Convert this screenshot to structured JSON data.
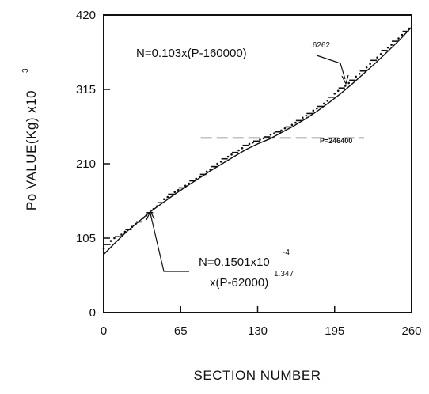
{
  "chart_data": {
    "type": "scatter",
    "xlabel": "SECTION NUMBER",
    "ylabel": "Po VALUE(Kg) x10",
    "ylabel_exponent": "3",
    "xlim": [
      0,
      260
    ],
    "ylim": [
      0,
      420
    ],
    "xticks": [
      "0",
      "65",
      "130",
      "195",
      "260"
    ],
    "yticks": [
      "0",
      "105",
      "210",
      "315",
      "420"
    ],
    "grid": false,
    "series": [
      {
        "kind": "points",
        "x": [
          0,
          3,
          6,
          9,
          12,
          15,
          18,
          21,
          24,
          27,
          30,
          33,
          36,
          39,
          42,
          45,
          48,
          51,
          54,
          57,
          60,
          63,
          66,
          69,
          72,
          75,
          78,
          81,
          84,
          87,
          90,
          93,
          96,
          99,
          102,
          105,
          108,
          111,
          114,
          117,
          120,
          123,
          126,
          129,
          132,
          135,
          138,
          141,
          144,
          147,
          150,
          153,
          156,
          159,
          162,
          165,
          168,
          171,
          174,
          177,
          180,
          183,
          186,
          189,
          192,
          195,
          198,
          201,
          204,
          207,
          210,
          213,
          216,
          219,
          222,
          225,
          228,
          231,
          234,
          237,
          240,
          243,
          246,
          249,
          252,
          255,
          258
        ],
        "y": [
          90,
          96,
          101,
          105,
          107,
          110,
          114,
          117,
          121,
          125,
          128,
          133,
          137,
          141,
          146,
          150,
          155,
          160,
          163,
          167,
          170,
          173,
          176,
          179,
          182,
          186,
          189,
          192,
          195,
          199,
          202,
          206,
          210,
          213,
          217,
          220,
          223,
          226,
          229,
          232,
          236,
          238,
          240,
          242,
          244,
          246,
          248,
          251,
          253,
          255,
          257,
          260,
          262,
          265,
          268,
          271,
          275,
          278,
          281,
          285,
          288,
          291,
          295,
          299,
          304,
          309,
          313,
          317,
          320,
          324,
          328,
          333,
          337,
          341,
          346,
          351,
          356,
          360,
          365,
          370,
          374,
          378,
          383,
          387,
          392,
          397,
          401
        ]
      },
      {
        "kind": "fit-curve",
        "x": [
          0,
          10,
          20,
          30,
          40,
          50,
          60,
          70,
          80,
          90,
          100,
          110,
          120,
          130,
          140,
          150,
          160,
          170,
          180,
          190,
          200,
          210,
          220,
          230,
          240,
          250,
          260
        ],
        "y": [
          82,
          99,
          115,
          129,
          143,
          155,
          167,
          178,
          189,
          200,
          210,
          220,
          230,
          238,
          245,
          254,
          263,
          273,
          284,
          296,
          309,
          323,
          338,
          353,
          369,
          385,
          403
        ]
      },
      {
        "kind": "dashed-line",
        "x": [
          82,
          220
        ],
        "y": [
          246.4,
          246.4
        ]
      }
    ],
    "annotations": {
      "top_formula": "N=0.103x(P-160000)",
      "top_exponent": ".6262",
      "p_label": "P=246400",
      "bottom_formula_line1": "N=0.1501x10",
      "bottom_exponent_line1": "-4",
      "bottom_formula_line2": "x(P-62000)",
      "bottom_exponent_line2": "1.347"
    }
  }
}
